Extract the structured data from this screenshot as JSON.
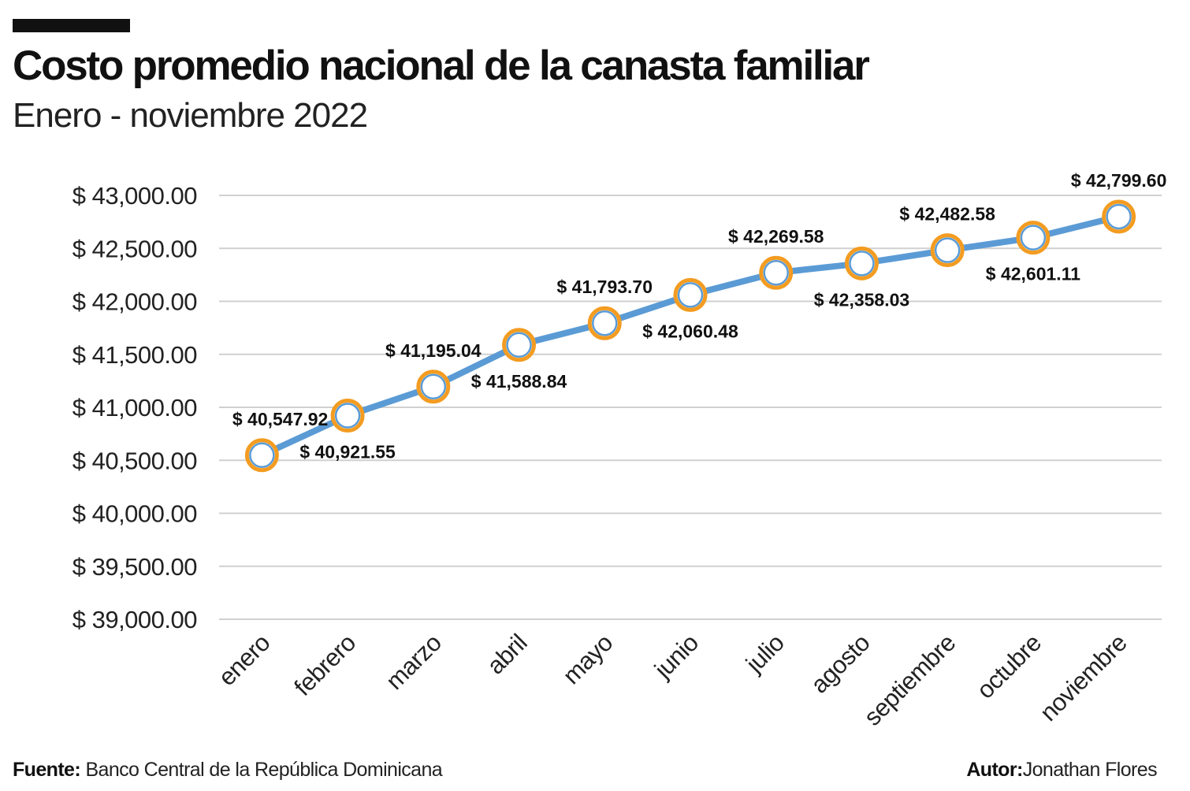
{
  "header": {
    "title": "Costo  promedio nacional de la canasta familiar",
    "subtitle": "Enero - noviembre 2022"
  },
  "footer": {
    "source_label": "Fuente:",
    "source_value": "Banco Central de la República Dominicana",
    "author_label": "Autor:",
    "author_value": "Jonathan Flores"
  },
  "colors": {
    "line": "#5b9bd5",
    "marker_border": "#f39c21",
    "marker_fill": "#ffffff",
    "grid": "#d0d0d0",
    "text": "#111111"
  },
  "chart_data": {
    "type": "line",
    "title": "Costo  promedio nacional de la canasta familiar",
    "subtitle": "Enero - noviembre 2022",
    "xlabel": "",
    "ylabel": "",
    "categories": [
      "enero",
      "febrero",
      "marzo",
      "abril",
      "mayo",
      "junio",
      "julio",
      "agosto",
      "septiembre",
      "octubre",
      "noviembre"
    ],
    "series": [
      {
        "name": "Costo promedio",
        "values": [
          40547.92,
          40921.55,
          41195.04,
          41588.84,
          41793.7,
          42060.48,
          42269.58,
          42358.03,
          42482.58,
          42601.11,
          42799.6
        ],
        "labels": [
          "$ 40,547.92",
          "$ 40,921.55",
          "$ 41,195.04",
          "$ 41,588.84",
          "$ 41,793.70",
          "$ 42,060.48",
          "$ 42,269.58",
          "$ 42,358.03",
          "$ 42,482.58",
          "$ 42,601.11",
          "$ 42,799.60"
        ],
        "label_positions": [
          "above",
          "below",
          "above",
          "below",
          "above",
          "below",
          "above",
          "below",
          "above",
          "below",
          "above"
        ]
      }
    ],
    "ylim": [
      39000,
      43000
    ],
    "y_ticks": [
      39000,
      39500,
      40000,
      40500,
      41000,
      41500,
      42000,
      42500,
      43000
    ],
    "y_tick_labels": [
      "$ 39,000.00",
      "$ 39,500.00",
      "$ 40,000.00",
      "$ 40,500.00",
      "$ 41,000.00",
      "$ 41,500.00",
      "$ 42,000.00",
      "$ 42,500.00",
      "$ 43,000.00"
    ],
    "grid": true,
    "legend": "none"
  }
}
